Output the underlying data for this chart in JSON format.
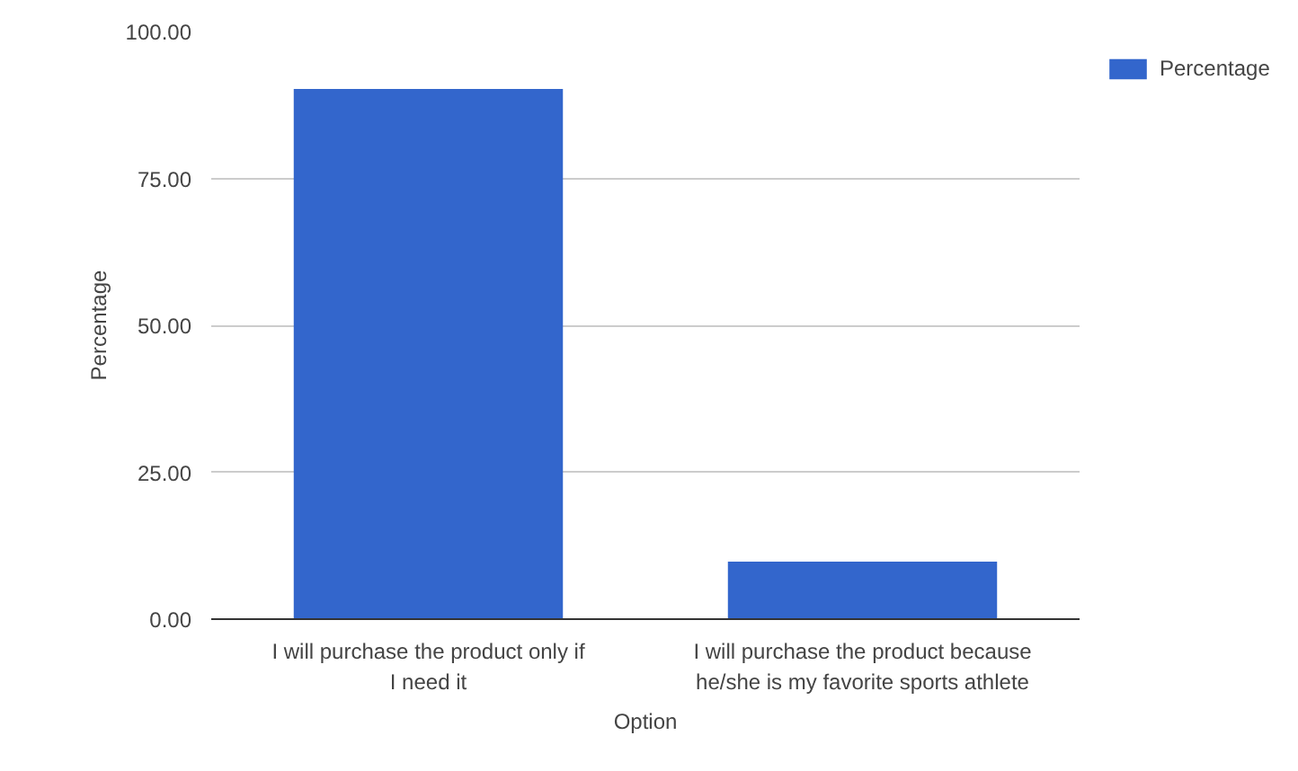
{
  "chart_data": {
    "type": "bar",
    "xlabel": "Option",
    "ylabel": "Percentage",
    "categories": [
      "I will purchase the product only if I need it",
      "I will purchase the product because he/she is my favorite sports athlete"
    ],
    "series": [
      {
        "name": "Percentage",
        "color": "#3366cc",
        "values": [
          90.2,
          9.8
        ]
      }
    ],
    "ylim": [
      0,
      100
    ],
    "yticks": [
      {
        "value": 0,
        "label": "0.00"
      },
      {
        "value": 25,
        "label": "25.00"
      },
      {
        "value": 50,
        "label": "50.00"
      },
      {
        "value": 75,
        "label": "75.00"
      },
      {
        "value": 100,
        "label": "100.00"
      }
    ],
    "grid": "y",
    "legend": "top right"
  }
}
